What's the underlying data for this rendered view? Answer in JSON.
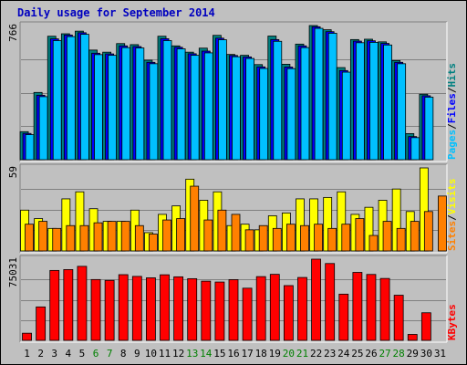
{
  "title": "Daily usage for September 2014",
  "chart_data": [
    {
      "type": "bar",
      "name": "pages-files-hits",
      "categories": [
        "1",
        "2",
        "3",
        "4",
        "5",
        "6",
        "7",
        "8",
        "9",
        "10",
        "11",
        "12",
        "13",
        "14",
        "15",
        "16",
        "17",
        "18",
        "19",
        "20",
        "21",
        "22",
        "23",
        "24",
        "25",
        "26",
        "27",
        "28",
        "29",
        "30",
        "31"
      ],
      "y_tick_label": "766",
      "ylim": [
        0,
        766
      ],
      "series": [
        {
          "name": "Hits",
          "color": "#008080",
          "values": [
            160,
            384,
            705,
            719,
            734,
            626,
            614,
            663,
            657,
            568,
            705,
            650,
            614,
            637,
            710,
            601,
            596,
            543,
            706,
            545,
            660,
            766,
            742,
            526,
            686,
            688,
            673,
            566,
            149,
            374,
            0
          ]
        },
        {
          "name": "Files",
          "color": "#0000ff",
          "values": [
            150,
            368,
            690,
            712,
            725,
            608,
            604,
            650,
            646,
            556,
            691,
            642,
            605,
            620,
            694,
            595,
            587,
            530,
            686,
            529,
            650,
            759,
            731,
            509,
            677,
            679,
            664,
            556,
            132,
            365,
            0
          ]
        },
        {
          "name": "Pages",
          "color": "#00c0ff",
          "values": [
            143,
            360,
            680,
            703,
            716,
            600,
            596,
            640,
            638,
            548,
            680,
            633,
            596,
            610,
            685,
            588,
            578,
            521,
            676,
            520,
            640,
            750,
            722,
            500,
            668,
            670,
            655,
            548,
            126,
            357,
            0
          ]
        }
      ]
    },
    {
      "type": "bar",
      "name": "sites-visits",
      "categories": [
        "1",
        "2",
        "3",
        "4",
        "5",
        "6",
        "7",
        "8",
        "9",
        "10",
        "11",
        "12",
        "13",
        "14",
        "15",
        "16",
        "17",
        "18",
        "19",
        "20",
        "21",
        "22",
        "23",
        "24",
        "25",
        "26",
        "27",
        "28",
        "29",
        "30",
        "31"
      ],
      "y_tick_label": "59",
      "ylim": [
        0,
        59
      ],
      "series": [
        {
          "name": "Visits",
          "color": "#ffff00",
          "values": [
            29,
            23,
            16,
            37,
            42,
            30,
            21,
            21,
            29,
            13,
            26,
            32,
            51,
            36,
            42,
            18,
            19,
            15,
            25,
            27,
            37,
            37,
            38,
            42,
            26,
            31,
            36,
            44,
            28,
            59,
            0
          ]
        },
        {
          "name": "Sites",
          "color": "#ff8000",
          "values": [
            19,
            21,
            16,
            18,
            18,
            20,
            21,
            21,
            18,
            12,
            22,
            23,
            46,
            22,
            29,
            26,
            15,
            18,
            16,
            19,
            18,
            19,
            16,
            19,
            23,
            11,
            21,
            16,
            21,
            28,
            39
          ]
        }
      ]
    },
    {
      "type": "bar",
      "name": "kbytes",
      "categories": [
        "1",
        "2",
        "3",
        "4",
        "5",
        "6",
        "7",
        "8",
        "9",
        "10",
        "11",
        "12",
        "13",
        "14",
        "15",
        "16",
        "17",
        "18",
        "19",
        "20",
        "21",
        "22",
        "23",
        "24",
        "25",
        "26",
        "27",
        "28",
        "29",
        "30",
        "31"
      ],
      "y_tick_label": "75031",
      "ylim": [
        0,
        75031
      ],
      "series": [
        {
          "name": "KBytes",
          "color": "#ff0000",
          "values": [
            6600,
            30900,
            64600,
            65400,
            68400,
            56200,
            55400,
            60700,
            59100,
            57800,
            60600,
            58700,
            57000,
            54700,
            53900,
            56100,
            48200,
            58900,
            61000,
            50600,
            58100,
            75031,
            71000,
            42700,
            62800,
            60900,
            57200,
            41700,
            5500,
            25500,
            0
          ]
        }
      ]
    }
  ],
  "legend_pages_files_hits": [
    {
      "label": "Pages",
      "color": "#00c0ff"
    },
    {
      "label": "/",
      "color": "#000000"
    },
    {
      "label": "Files",
      "color": "#0000ff"
    },
    {
      "label": "/",
      "color": "#000000"
    },
    {
      "label": "Hits",
      "color": "#008080"
    }
  ],
  "legend_sites_visits": [
    {
      "label": "Sites",
      "color": "#ff8000"
    },
    {
      "label": "/",
      "color": "#000000"
    },
    {
      "label": "Visits",
      "color": "#ffff00"
    }
  ],
  "legend_kbytes": [
    {
      "label": "KBytes",
      "color": "#ff0000"
    }
  ],
  "day_label_colors": {
    "weekday": "#000000",
    "weekend": "#008000",
    "weekend_days": [
      6,
      7,
      13,
      14,
      20,
      21,
      27,
      28
    ]
  }
}
